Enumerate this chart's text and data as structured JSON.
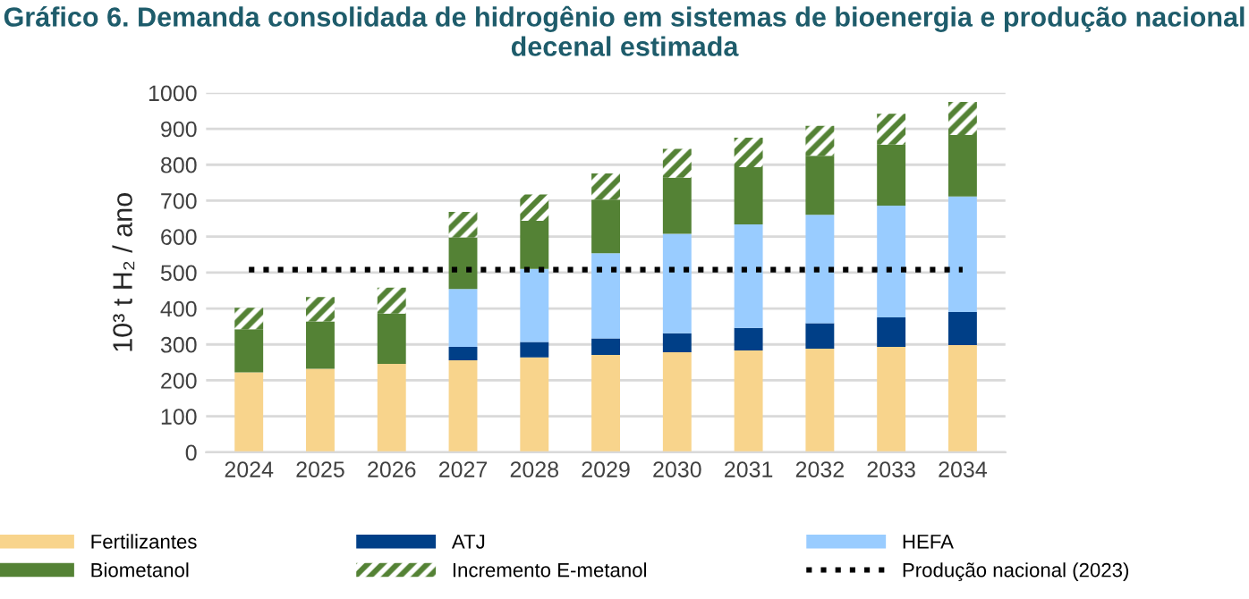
{
  "chart_data": {
    "type": "bar",
    "title": "Gráfico 6. Demanda consolidada de hidrogênio em sistemas de bioenergia e produção nacional decenal estimada",
    "ylabel": "10³ t H₂ / ano",
    "categories": [
      "2024",
      "2025",
      "2026",
      "2027",
      "2028",
      "2029",
      "2030",
      "2031",
      "2032",
      "2033",
      "2034"
    ],
    "stacked": true,
    "ylim": [
      0,
      1000
    ],
    "yticks": [
      0,
      100,
      200,
      300,
      400,
      500,
      600,
      700,
      800,
      900,
      1000
    ],
    "grid": "y",
    "legend": "bottom",
    "series": [
      {
        "name": "Fertilizantes",
        "color": "#f8d48c",
        "values": [
          222,
          232,
          246,
          256,
          264,
          271,
          278,
          283,
          288,
          293,
          298
        ]
      },
      {
        "name": "ATJ",
        "color": "#003f87",
        "values": [
          0,
          0,
          0,
          37,
          43,
          46,
          53,
          63,
          71,
          82,
          92
        ]
      },
      {
        "name": "HEFA",
        "color": "#99ccff",
        "values": [
          0,
          0,
          0,
          161,
          203,
          237,
          277,
          288,
          302,
          311,
          322
        ]
      },
      {
        "name": "Biometanol",
        "color": "#548235",
        "values": [
          120,
          132,
          140,
          144,
          134,
          149,
          156,
          159,
          164,
          170,
          171
        ]
      },
      {
        "name": "Incremento E-metanol",
        "color": "#548235",
        "values": [
          60,
          68,
          72,
          71,
          73,
          73,
          80,
          82,
          83,
          86,
          92
        ]
      },
      {
        "name": "Produção nacional (2023)",
        "type": "line",
        "color": "#000000",
        "line_style": "dotted",
        "values": [
          508,
          508,
          508,
          508,
          508,
          508,
          508,
          508,
          508,
          508,
          508
        ]
      }
    ]
  }
}
